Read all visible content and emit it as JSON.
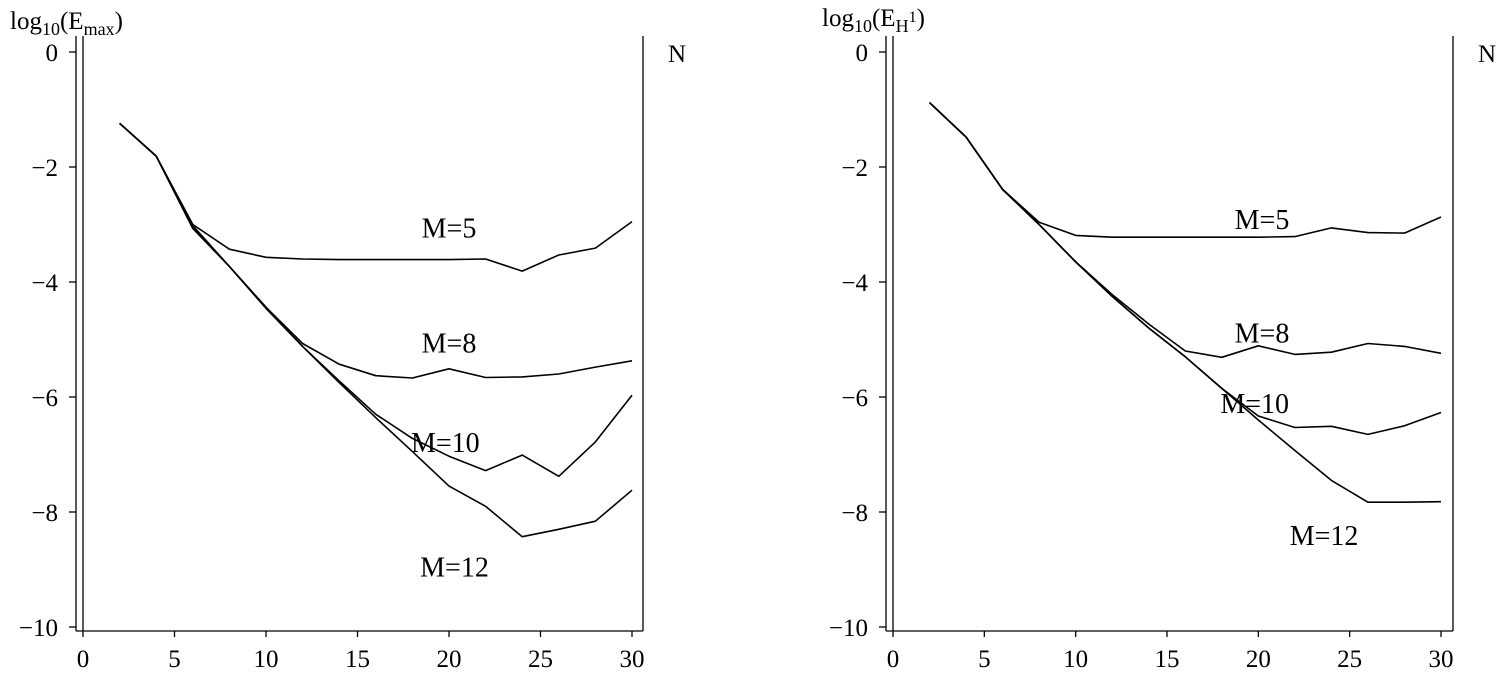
{
  "chart_data": [
    {
      "type": "line",
      "ylabel": {
        "base": "log",
        "sub": "10",
        "open": "(E",
        "esub": "max",
        "close": ")"
      },
      "xlabel": "N",
      "xlim": [
        0,
        30
      ],
      "ylim": [
        -10,
        0
      ],
      "xticks": [
        0,
        5,
        10,
        15,
        20,
        25,
        30
      ],
      "yticks": [
        0,
        -2,
        -4,
        -6,
        -8,
        -10
      ],
      "ytick_labels": [
        "0",
        "−2",
        "−4",
        "−6",
        "−8",
        "−10"
      ],
      "series": [
        {
          "name": "M=5",
          "x": [
            2,
            4,
            6,
            8,
            10,
            12,
            14,
            16,
            18,
            20,
            22,
            24,
            26,
            28,
            30
          ],
          "y": [
            -1.24,
            -1.81,
            -3.0,
            -3.43,
            -3.57,
            -3.6,
            -3.61,
            -3.61,
            -3.61,
            -3.61,
            -3.6,
            -3.81,
            -3.53,
            -3.41,
            -2.95
          ]
        },
        {
          "name": "M=8",
          "x": [
            2,
            4,
            6,
            8,
            10,
            12,
            14,
            16,
            18,
            20,
            22,
            24,
            26,
            28,
            30
          ],
          "y": [
            -1.24,
            -1.81,
            -3.02,
            -3.73,
            -4.44,
            -5.07,
            -5.43,
            -5.63,
            -5.67,
            -5.51,
            -5.66,
            -5.65,
            -5.6,
            -5.48,
            -5.37
          ]
        },
        {
          "name": "M=10",
          "x": [
            2,
            4,
            6,
            8,
            10,
            12,
            14,
            16,
            18,
            20,
            22,
            24,
            26,
            28,
            30
          ],
          "y": [
            -1.24,
            -1.81,
            -3.05,
            -3.73,
            -4.44,
            -5.12,
            -5.72,
            -6.3,
            -6.72,
            -7.03,
            -7.28,
            -7.01,
            -7.38,
            -6.78,
            -5.97
          ]
        },
        {
          "name": "M=12",
          "x": [
            2,
            4,
            6,
            8,
            10,
            12,
            14,
            16,
            18,
            20,
            22,
            24,
            26,
            28,
            30
          ],
          "y": [
            -1.24,
            -1.81,
            -3.07,
            -3.73,
            -4.46,
            -5.12,
            -5.75,
            -6.36,
            -6.95,
            -7.55,
            -7.9,
            -8.43,
            -8.3,
            -8.16,
            -7.62
          ]
        }
      ],
      "annotations": [
        {
          "text": "M=5",
          "x": 20,
          "y": -3.05
        },
        {
          "text": "M=8",
          "x": 20,
          "y": -5.05
        },
        {
          "text": "M=10",
          "x": 19.8,
          "y": -6.78
        },
        {
          "text": "M=12",
          "x": 20.3,
          "y": -8.95
        }
      ]
    },
    {
      "type": "line",
      "ylabel": {
        "base": "log",
        "sub": "10",
        "open": "(E",
        "esub": "H",
        "sup": "1",
        "close": ")"
      },
      "xlabel": "N",
      "xlim": [
        0,
        30
      ],
      "ylim": [
        -10,
        0
      ],
      "xticks": [
        0,
        5,
        10,
        15,
        20,
        25,
        30
      ],
      "yticks": [
        0,
        -2,
        -4,
        -6,
        -8,
        -10
      ],
      "ytick_labels": [
        "0",
        "−2",
        "−4",
        "−6",
        "−8",
        "−10"
      ],
      "series": [
        {
          "name": "M=5",
          "x": [
            2,
            4,
            6,
            8,
            10,
            12,
            14,
            16,
            18,
            20,
            22,
            24,
            26,
            28,
            30
          ],
          "y": [
            -0.88,
            -1.48,
            -2.39,
            -2.96,
            -3.19,
            -3.22,
            -3.22,
            -3.22,
            -3.22,
            -3.22,
            -3.21,
            -3.06,
            -3.14,
            -3.15,
            -2.87
          ]
        },
        {
          "name": "M=8",
          "x": [
            2,
            4,
            6,
            8,
            10,
            12,
            14,
            16,
            18,
            20,
            22,
            24,
            26,
            28,
            30
          ],
          "y": [
            -0.88,
            -1.48,
            -2.39,
            -3.0,
            -3.65,
            -4.22,
            -4.73,
            -5.2,
            -5.31,
            -5.11,
            -5.26,
            -5.22,
            -5.07,
            -5.12,
            -5.24
          ]
        },
        {
          "name": "M=10",
          "x": [
            2,
            4,
            6,
            8,
            10,
            12,
            14,
            16,
            18,
            20,
            22,
            24,
            26,
            28,
            30
          ],
          "y": [
            -0.88,
            -1.48,
            -2.39,
            -3.0,
            -3.65,
            -4.25,
            -4.8,
            -5.3,
            -5.85,
            -6.33,
            -6.53,
            -6.51,
            -6.65,
            -6.5,
            -6.27
          ]
        },
        {
          "name": "M=12",
          "x": [
            2,
            4,
            6,
            8,
            10,
            12,
            14,
            16,
            18,
            20,
            22,
            24,
            26,
            28,
            30
          ],
          "y": [
            -0.88,
            -1.48,
            -2.39,
            -3.0,
            -3.65,
            -4.25,
            -4.8,
            -5.3,
            -5.85,
            -6.4,
            -6.93,
            -7.45,
            -7.83,
            -7.83,
            -7.82
          ]
        }
      ],
      "annotations": [
        {
          "text": "M=5",
          "x": 20.2,
          "y": -2.9
        },
        {
          "text": "M=8",
          "x": 20.2,
          "y": -4.88
        },
        {
          "text": "M=10",
          "x": 19.8,
          "y": -6.1
        },
        {
          "text": "M=12",
          "x": 23.6,
          "y": -8.4
        }
      ]
    }
  ]
}
